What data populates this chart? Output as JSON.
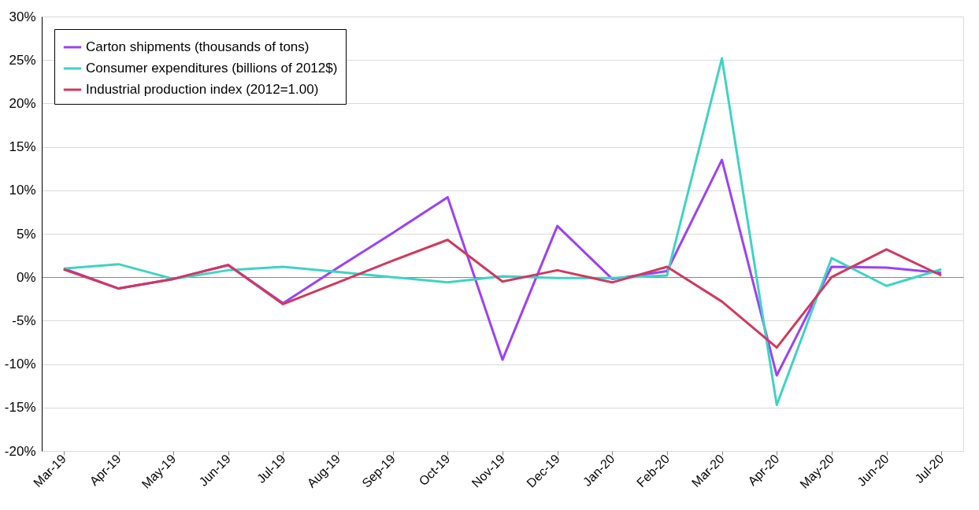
{
  "chart_data": {
    "type": "line",
    "categories": [
      "Mar-19",
      "Apr-19",
      "May-19",
      "Jun-19",
      "Jul-19",
      "Aug-19",
      "Sep-19",
      "Oct-19",
      "Nov-19",
      "Dec-19",
      "Jan-20",
      "Feb-20",
      "Mar-20",
      "Apr-20",
      "May-20",
      "Jun-20",
      "Jul-20"
    ],
    "series": [
      {
        "name": "Carton shipments (thousands of tons)",
        "color": "#9b42f5",
        "values": [
          1.0,
          -1.3,
          -0.2,
          1.4,
          -3.0,
          1.1,
          5.1,
          9.2,
          -9.5,
          5.9,
          -0.2,
          0.7,
          13.5,
          -11.3,
          1.2,
          1.1,
          0.5
        ]
      },
      {
        "name": "Consumer expenditures (billions of 2012$)",
        "color": "#3fd3c4",
        "values": [
          1.0,
          1.5,
          -0.2,
          0.8,
          1.2,
          0.6,
          0.0,
          -0.6,
          0.1,
          -0.1,
          -0.1,
          0.2,
          25.2,
          -14.7,
          2.2,
          -1.0,
          0.9
        ]
      },
      {
        "name": "Industrial production index (2012=1.00)",
        "color": "#d0395e",
        "values": [
          0.9,
          -1.3,
          -0.2,
          1.4,
          -3.1,
          -0.6,
          1.9,
          4.3,
          -0.5,
          0.8,
          -0.6,
          1.2,
          -2.8,
          -8.1,
          0.0,
          3.2,
          0.2
        ]
      }
    ],
    "ylim": [
      -20,
      30
    ],
    "yticks": [
      {
        "value": -20,
        "label": "-20%"
      },
      {
        "value": -15,
        "label": "-15%"
      },
      {
        "value": -10,
        "label": "-10%"
      },
      {
        "value": -5,
        "label": "-5%"
      },
      {
        "value": 0,
        "label": "0%"
      },
      {
        "value": 5,
        "label": "5%"
      },
      {
        "value": 10,
        "label": "10%"
      },
      {
        "value": 15,
        "label": "15%"
      },
      {
        "value": 20,
        "label": "20%"
      },
      {
        "value": 25,
        "label": "25%"
      },
      {
        "value": 30,
        "label": "30%"
      }
    ],
    "grid": "y",
    "legend": "top left",
    "marker": "none",
    "line_style": "solid"
  }
}
